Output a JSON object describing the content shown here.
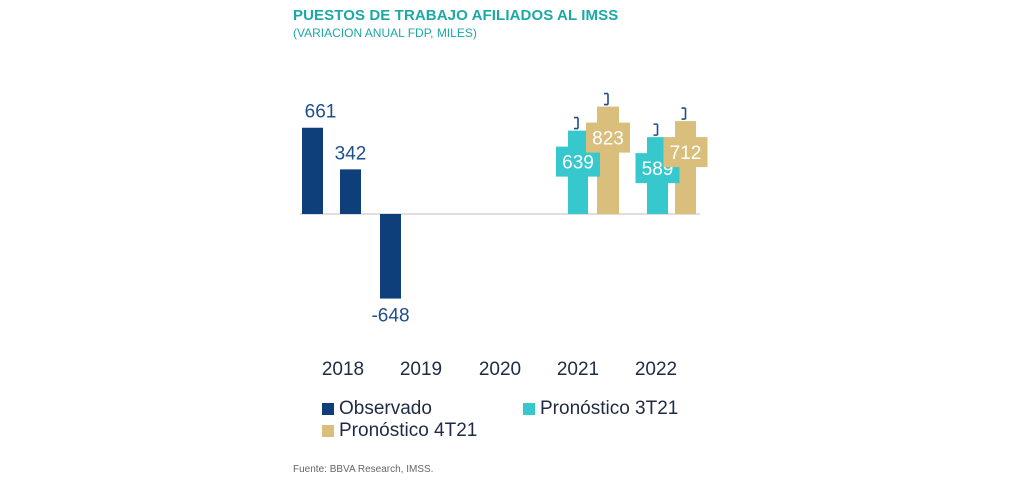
{
  "chart_data": {
    "type": "bar",
    "title": "PUESTOS DE TRABAJO AFILIADOS AL IMSS",
    "subtitle": "(VARIACION ANUAL FDP, MILES)",
    "categories": [
      "2018",
      "2019",
      "2020",
      "2021",
      "2022"
    ],
    "series": [
      {
        "name": "Observado",
        "color": "#0e3f7a",
        "values": [
          661,
          342,
          -648,
          null,
          null
        ]
      },
      {
        "name": "Pronóstico 3T21",
        "color": "#36c8cd",
        "values": [
          null,
          null,
          null,
          639,
          589
        ]
      },
      {
        "name": "Pronóstico 4T21",
        "color": "#d9be7c",
        "values": [
          null,
          null,
          null,
          823,
          712
        ]
      }
    ],
    "labels": {
      "observado": [
        "661",
        "342",
        "-648"
      ],
      "pron3": [
        "639",
        "589"
      ],
      "pron4": [
        "823",
        "712"
      ]
    },
    "ylim": [
      -700,
      900
    ],
    "legend_position": "bottom",
    "source": "Fuente: BBVA Research, IMSS."
  }
}
